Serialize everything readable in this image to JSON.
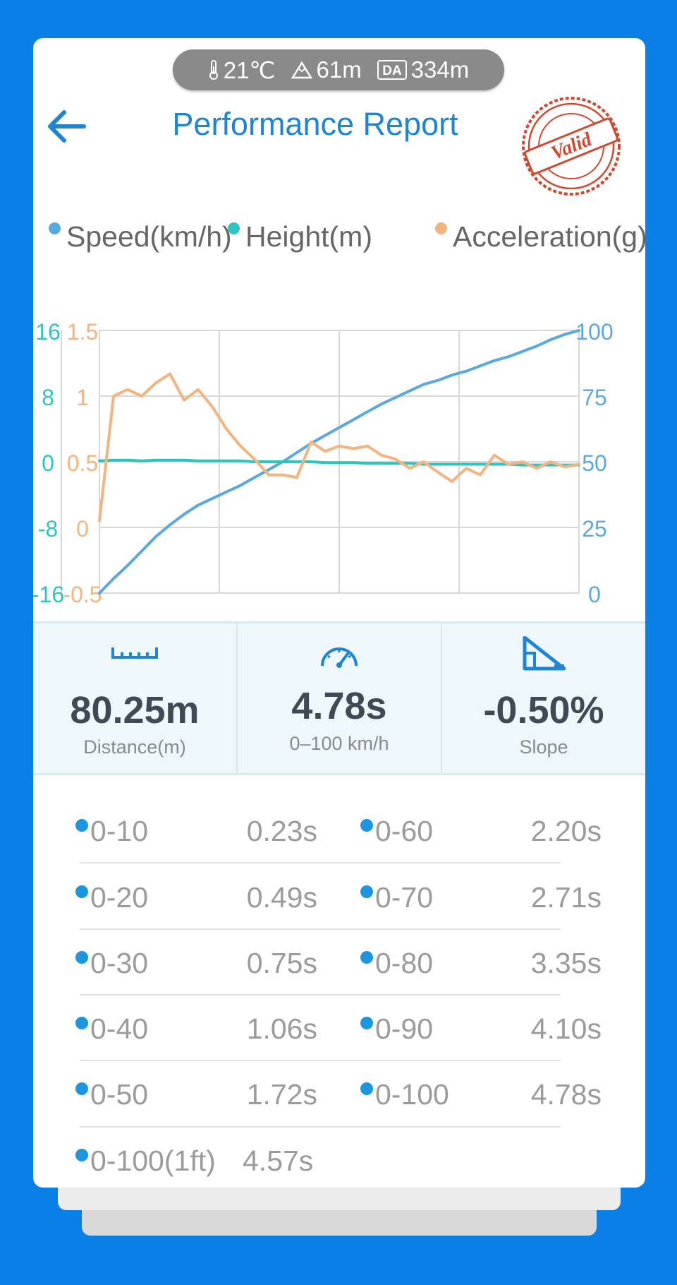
{
  "environment": {
    "temperature": "21℃",
    "altitude": "61m",
    "density_altitude_badge": "DA",
    "density_altitude": "334m",
    "icons": [
      "thermometer-icon",
      "mountain-icon",
      "da-badge-icon"
    ]
  },
  "header": {
    "title": "Performance Report",
    "back_icon": "arrow-left-icon",
    "stamp_text": "Valid"
  },
  "colors": {
    "speed": "#5aa8e0",
    "height": "#2ec4c0",
    "acceleration": "#f4b47f",
    "accent": "#1e84d4",
    "background": "#0a7fe6"
  },
  "chart_data": {
    "type": "line",
    "legend": [
      "Speed(km/h)",
      "Height(m)",
      "Acceleration(g)"
    ],
    "x_grid_divisions": 4,
    "axes": {
      "height_ticks": [
        "16",
        "8",
        "0",
        "-8",
        "-16"
      ],
      "height_range": [
        -16,
        16
      ],
      "accel_ticks": [
        "1.5",
        "1",
        "0.5",
        "0",
        "-0.5"
      ],
      "accel_range": [
        -0.5,
        1.5
      ],
      "speed_ticks": [
        "100",
        "75",
        "50",
        "25",
        "0"
      ],
      "speed_range": [
        0,
        100
      ]
    },
    "series": [
      {
        "name": "Speed(km/h)",
        "axis": "right",
        "values": [
          0,
          5.5,
          10.5,
          16,
          21.5,
          26,
          30,
          33.5,
          36,
          38.5,
          41,
          44,
          47,
          50,
          53.5,
          57,
          60,
          63,
          66,
          69,
          72,
          74.5,
          77,
          79.5,
          81,
          83,
          84.5,
          86.5,
          88.5,
          90,
          92,
          94,
          96.5,
          98.5,
          100
        ]
      },
      {
        "name": "Height(m)",
        "axis": "left",
        "values": [
          0.1,
          0.2,
          0.2,
          0.1,
          0.2,
          0.2,
          0.2,
          0.1,
          0.1,
          0.1,
          0.1,
          0.0,
          0.0,
          0.0,
          0.0,
          0.0,
          -0.1,
          -0.1,
          -0.1,
          -0.2,
          -0.2,
          -0.2,
          -0.2,
          -0.3,
          -0.3,
          -0.3,
          -0.3,
          -0.3,
          -0.3,
          -0.3,
          -0.4,
          -0.4,
          -0.4,
          -0.4,
          -0.4
        ]
      },
      {
        "name": "Acceleration(g)",
        "axis": "left-inner",
        "values": [
          0.05,
          1.0,
          1.05,
          1.0,
          1.1,
          1.17,
          0.97,
          1.05,
          0.92,
          0.75,
          0.62,
          0.52,
          0.4,
          0.4,
          0.38,
          0.65,
          0.58,
          0.62,
          0.6,
          0.62,
          0.55,
          0.52,
          0.45,
          0.5,
          0.42,
          0.35,
          0.45,
          0.4,
          0.55,
          0.48,
          0.5,
          0.45,
          0.5,
          0.46,
          0.48
        ]
      }
    ]
  },
  "stats": [
    {
      "icon": "ruler-icon",
      "value": "80.25m",
      "label": "Distance(m)"
    },
    {
      "icon": "speedometer-icon",
      "value": "4.78s",
      "label": "0–100 km/h"
    },
    {
      "icon": "slope-icon",
      "value": "-0.50%",
      "label": "Slope"
    }
  ],
  "times": [
    {
      "range": "0-10",
      "time": "0.23s"
    },
    {
      "range": "0-60",
      "time": "2.20s"
    },
    {
      "range": "0-20",
      "time": "0.49s"
    },
    {
      "range": "0-70",
      "time": "2.71s"
    },
    {
      "range": "0-30",
      "time": "0.75s"
    },
    {
      "range": "0-80",
      "time": "3.35s"
    },
    {
      "range": "0-40",
      "time": "1.06s"
    },
    {
      "range": "0-90",
      "time": "4.10s"
    },
    {
      "range": "0-50",
      "time": "1.72s"
    },
    {
      "range": "0-100",
      "time": "4.78s"
    },
    {
      "range": "0-100(1ft)",
      "time": "4.57s"
    }
  ]
}
